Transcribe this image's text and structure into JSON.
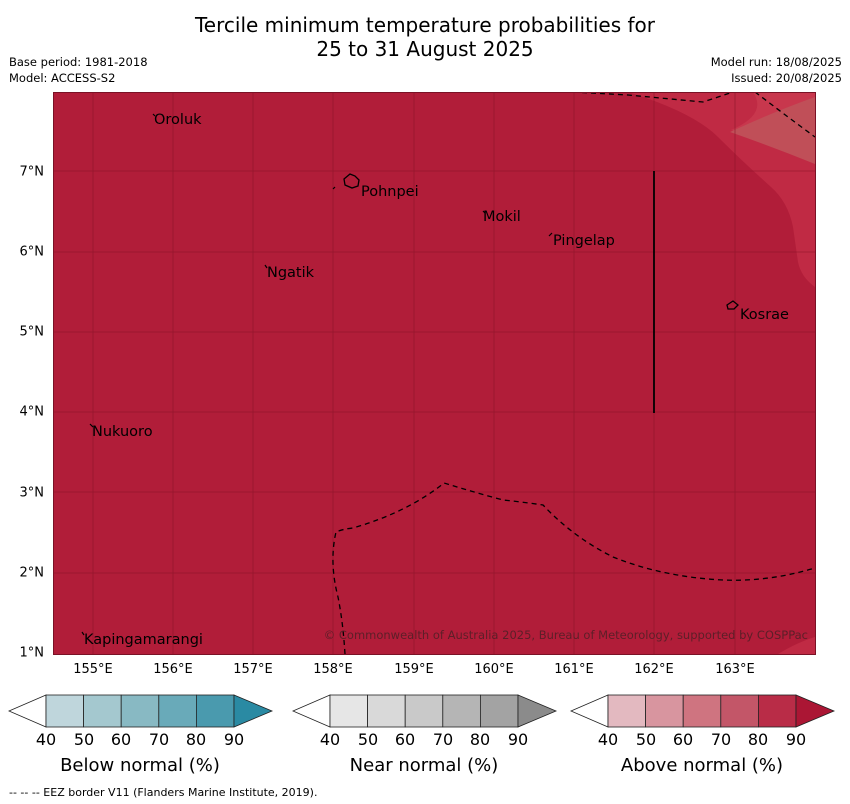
{
  "title": {
    "line1": "Tercile minimum temperature probabilities for",
    "line2": "25 to 31 August 2025"
  },
  "meta": {
    "base_period": "Base period: 1981-2018",
    "model": "Model: ACCESS-S2",
    "model_run": "Model run: 18/08/2025",
    "issued": "Issued: 20/08/2025"
  },
  "map": {
    "lat_labels": [
      "7°N",
      "6°N",
      "5°N",
      "4°N",
      "3°N",
      "2°N",
      "1°N"
    ],
    "lon_labels": [
      "155°E",
      "156°E",
      "157°E",
      "158°E",
      "159°E",
      "160°E",
      "161°E",
      "162°E",
      "163°E"
    ],
    "places": {
      "oroluk": "Oroluk",
      "pohnpei": "Pohnpei",
      "mokil": "Mokil",
      "pingelap": "Pingelap",
      "ngatik": "Ngatik",
      "kosrae": "Kosrae",
      "nukuoro": "Nukuoro",
      "kapingamarangi": "Kapingamarangi"
    },
    "copyright": "© Commonwealth of Australia 2025, Bureau of Meteorology, supported by COSPPac",
    "fill_color": "#b11d39",
    "light_zone_color": "#c8374d"
  },
  "legends": {
    "below": {
      "title": "Below normal (%)",
      "ticks": [
        "40",
        "50",
        "60",
        "70",
        "80",
        "90"
      ],
      "colors": [
        "#ffffff",
        "#bfd6dc",
        "#a4c8cf",
        "#88b9c3",
        "#69aab9",
        "#4a9aae",
        "#2a8aa3"
      ]
    },
    "near": {
      "title": "Near normal (%)",
      "ticks": [
        "40",
        "50",
        "60",
        "70",
        "80",
        "90"
      ],
      "colors": [
        "#ffffff",
        "#e6e6e6",
        "#d9d9d9",
        "#c9c9c9",
        "#b5b5b5",
        "#a3a3a3",
        "#8b8b8b"
      ]
    },
    "above": {
      "title": "Above normal (%)",
      "ticks": [
        "40",
        "50",
        "60",
        "70",
        "80",
        "90"
      ],
      "colors": [
        "#ffffff",
        "#e3b9c0",
        "#d8959f",
        "#cf7480",
        "#c35668",
        "#b92c47",
        "#ab1634"
      ]
    }
  },
  "footnote": "--  --  -- EEZ border V11 (Flanders Marine Institute, 2019)."
}
